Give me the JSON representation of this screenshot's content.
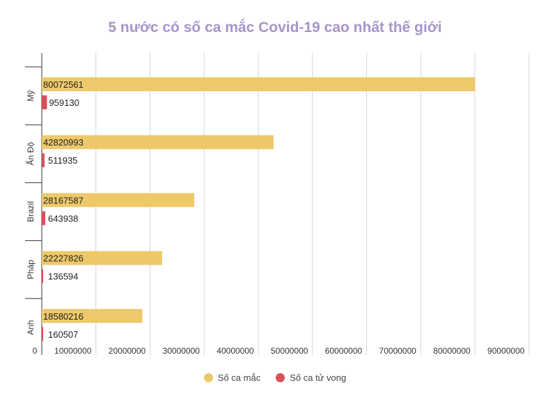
{
  "colors": {
    "cases": "#edc96a",
    "deaths": "#d9505a",
    "title": "#a894c9",
    "grid": "#d6d6d6"
  },
  "chart_data": {
    "type": "bar",
    "orientation": "horizontal",
    "title": "5 nước có số ca mắc Covid-19 cao nhất thế giới",
    "categories": [
      "Mỹ",
      "Ấn Độ",
      "Brazil",
      "Pháp",
      "Anh"
    ],
    "series": [
      {
        "name": "Số ca mắc",
        "values": [
          80072561,
          42820993,
          28167587,
          22227826,
          18580216
        ],
        "color": "#edc96a"
      },
      {
        "name": "Số ca tử vong",
        "values": [
          959130,
          511935,
          643938,
          136594,
          160507
        ],
        "color": "#d9505a"
      }
    ],
    "xlim": [
      0,
      90000000
    ],
    "x_ticks": [
      "0",
      "10000000",
      "20000000",
      "30000000",
      "40000000",
      "50000000",
      "60000000",
      "70000000",
      "80000000",
      "90000000"
    ],
    "x_tick_values": [
      0,
      10000000,
      20000000,
      30000000,
      40000000,
      50000000,
      60000000,
      70000000,
      80000000,
      90000000
    ],
    "grid": true,
    "legend_position": "bottom"
  }
}
